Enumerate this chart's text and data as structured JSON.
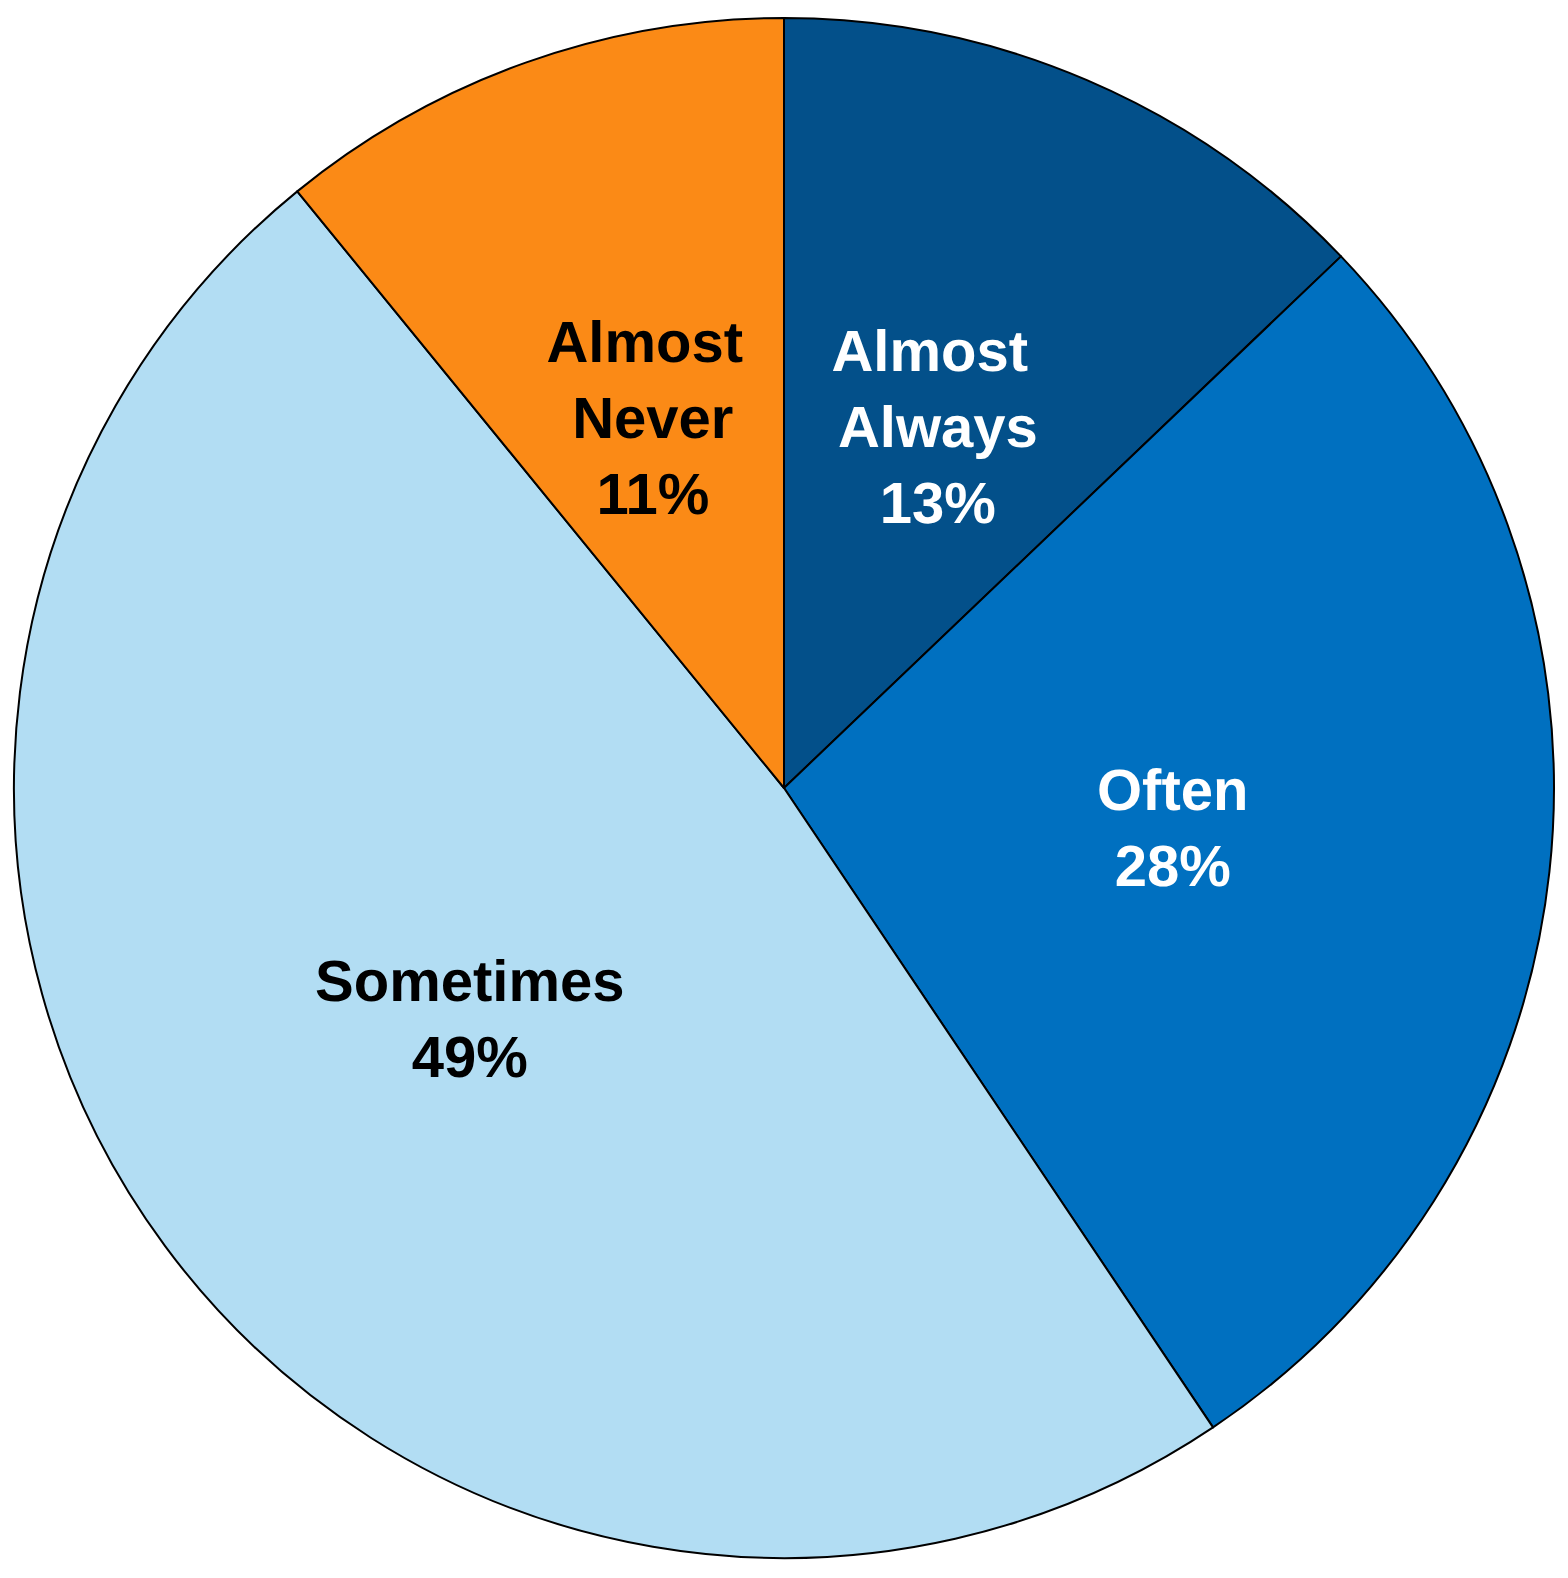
{
  "chart_data": {
    "type": "pie",
    "categories": [
      "Almost Always",
      "Often",
      "Sometimes",
      "Almost Never"
    ],
    "values": [
      13,
      28,
      49,
      11
    ],
    "value_labels": [
      "13%",
      "28%",
      "49%",
      "11%"
    ],
    "colors": [
      "#03508a",
      "#0070c0",
      "#b2ddf3",
      "#fb8a16"
    ],
    "legend": false
  }
}
